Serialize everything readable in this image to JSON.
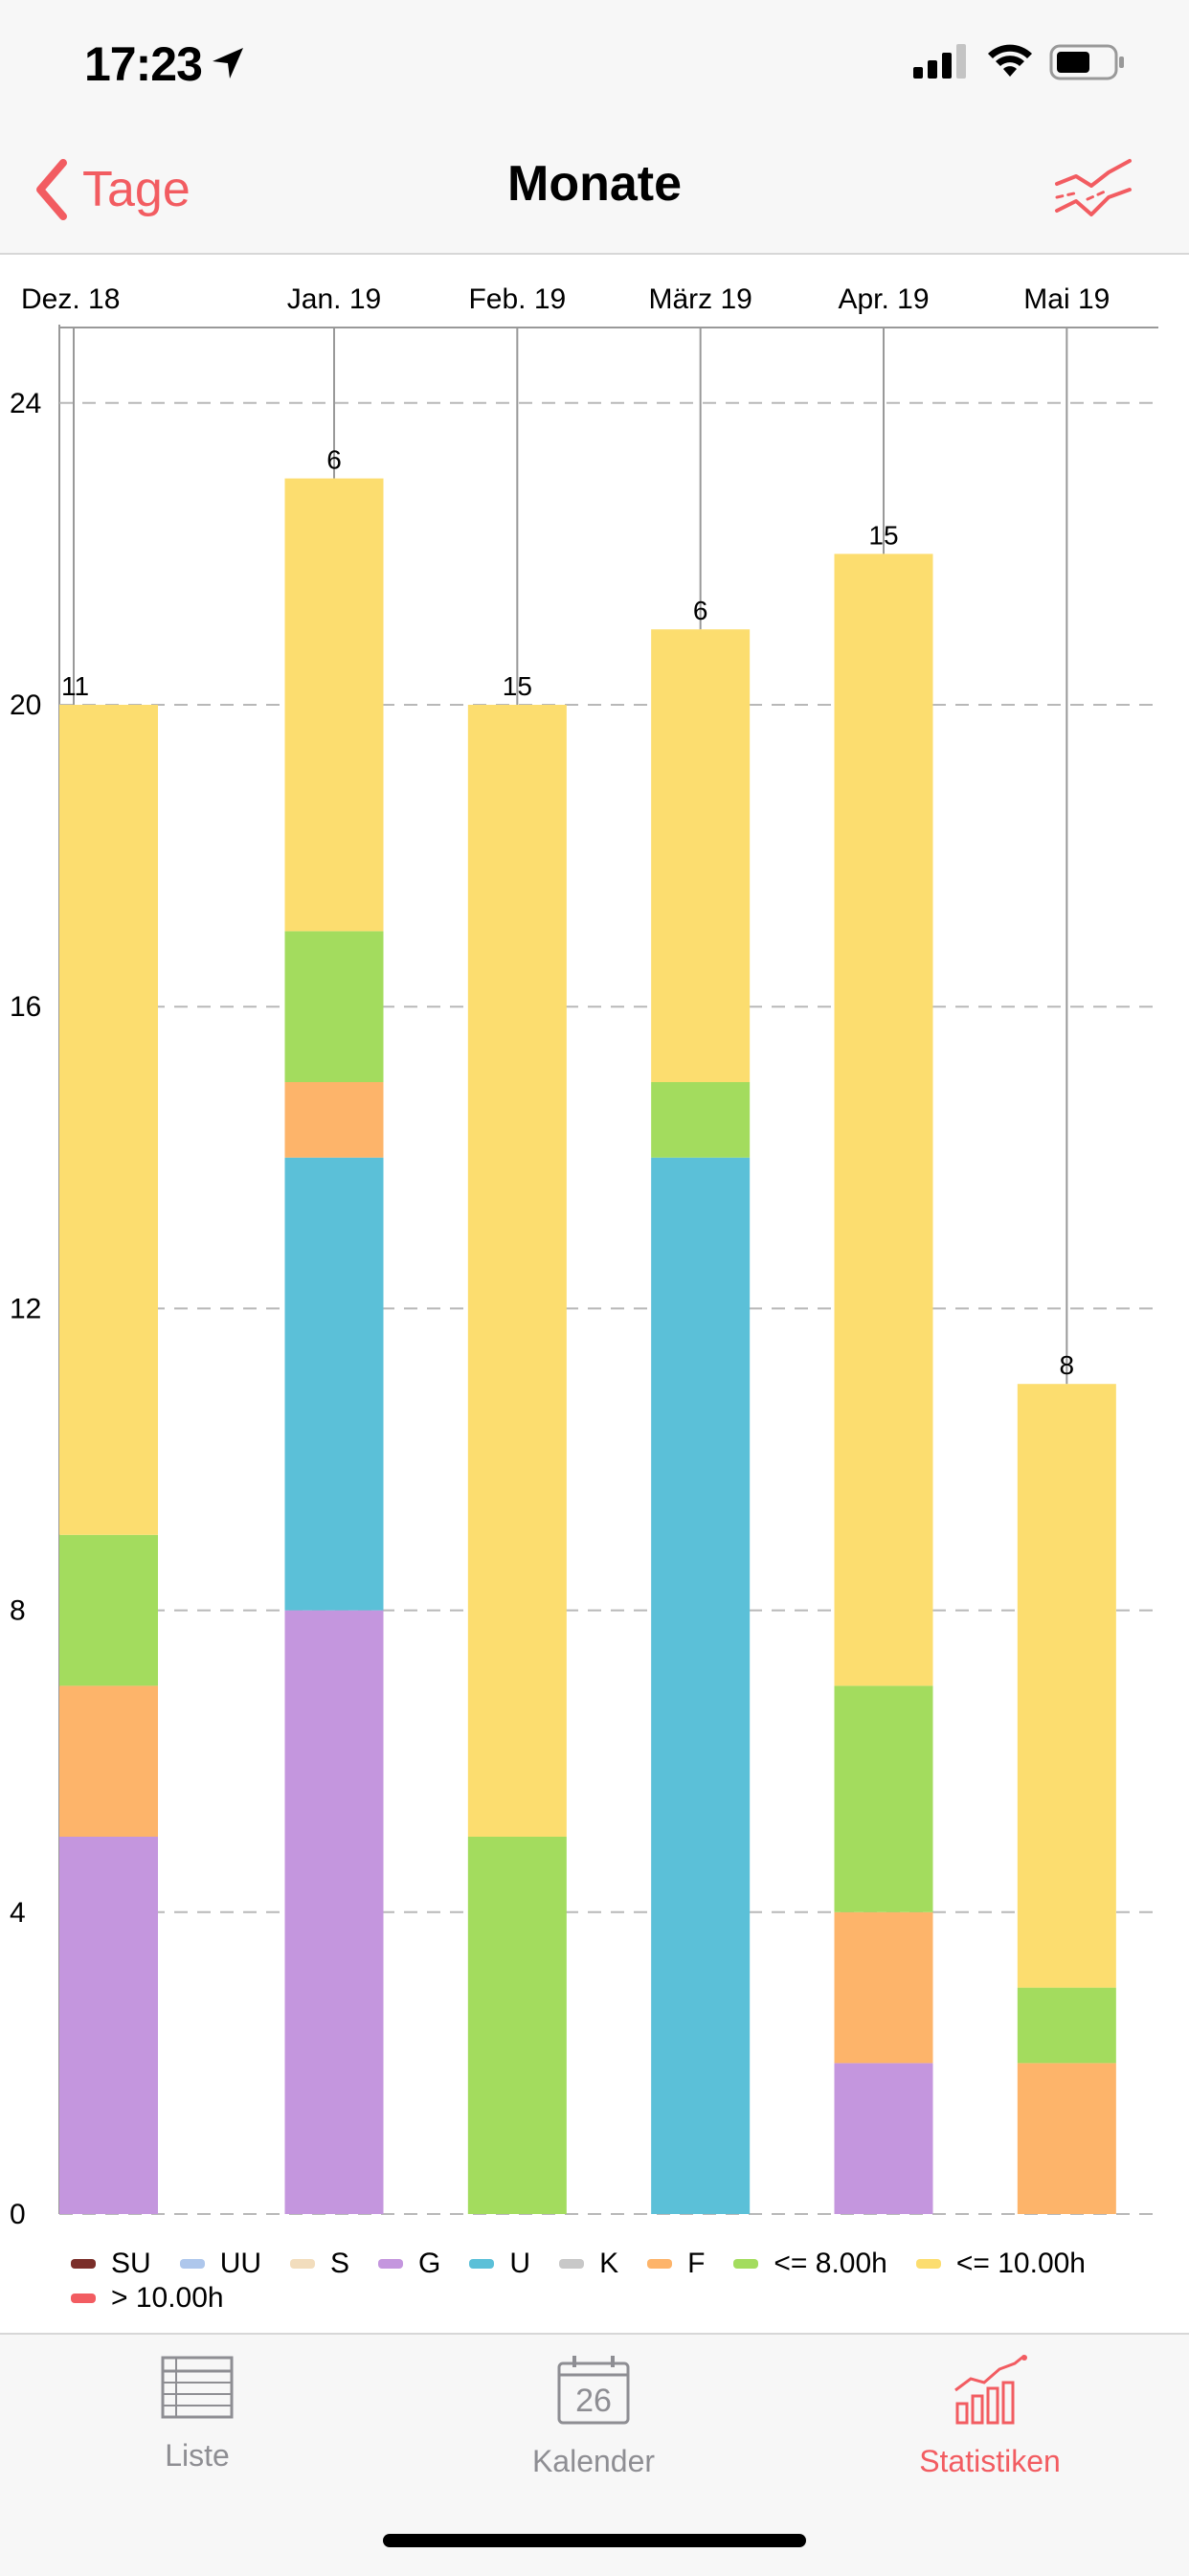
{
  "status": {
    "time": "17:23"
  },
  "nav": {
    "back_label": "Tage",
    "title": "Monate"
  },
  "chart_data": {
    "type": "bar",
    "stacked": true,
    "categories": [
      "Dez. 18",
      "Jan. 19",
      "Feb. 19",
      "März 19",
      "Apr. 19",
      "Mai 19"
    ],
    "ylim": [
      0,
      25
    ],
    "yticks": [
      0,
      4,
      8,
      12,
      16,
      20,
      24
    ],
    "grid": true,
    "legend_position": "bottom",
    "series": [
      {
        "name": "SU",
        "color": "#7b2f2a",
        "values": [
          0,
          0,
          0,
          0,
          0,
          0
        ]
      },
      {
        "name": "UU",
        "color": "#aec7ec",
        "values": [
          0,
          0,
          0,
          0,
          0,
          0
        ]
      },
      {
        "name": "S",
        "color": "#f2ddbd",
        "values": [
          0,
          0,
          0,
          0,
          0,
          0
        ]
      },
      {
        "name": "G",
        "color": "#c496de",
        "values": [
          5,
          8,
          0,
          0,
          2,
          0
        ]
      },
      {
        "name": "U",
        "color": "#5bc0d8",
        "values": [
          0,
          6,
          0,
          14,
          0,
          0
        ]
      },
      {
        "name": "K",
        "color": "#c8c8c8",
        "values": [
          0,
          0,
          0,
          0,
          0,
          0
        ]
      },
      {
        "name": "F",
        "color": "#fdb46a",
        "values": [
          2,
          1,
          0,
          0,
          2,
          2
        ]
      },
      {
        "name": "<= 8.00h",
        "color": "#a3dc5e",
        "values": [
          2,
          2,
          5,
          1,
          3,
          1
        ]
      },
      {
        "name": "<= 10.00h",
        "color": "#fcdd6f",
        "values": [
          11,
          6,
          15,
          6,
          15,
          8
        ]
      },
      {
        "name": "> 10.00h",
        "color": "#f25c61",
        "values": [
          0,
          0,
          0,
          0,
          0,
          0
        ]
      }
    ]
  },
  "tabs": [
    {
      "label": "Liste",
      "icon": "list-icon"
    },
    {
      "label": "Kalender",
      "icon": "calendar-icon",
      "day": "26"
    },
    {
      "label": "Statistiken",
      "icon": "statistics-icon"
    }
  ]
}
